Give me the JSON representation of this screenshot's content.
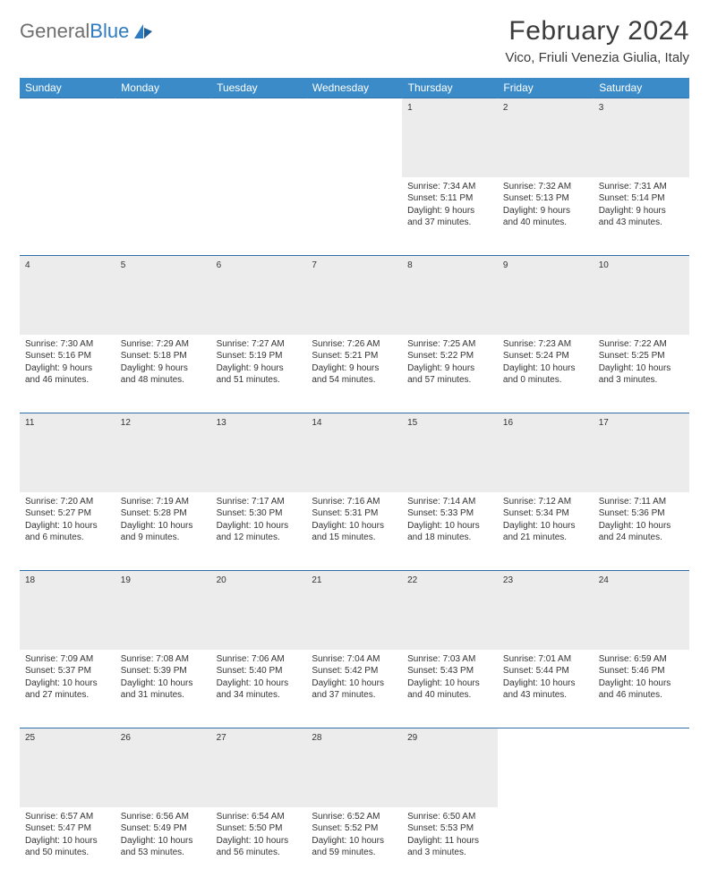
{
  "brand": {
    "name_a": "General",
    "name_b": "Blue"
  },
  "title": "February 2024",
  "location": "Vico, Friuli Venezia Giulia, Italy",
  "colors": {
    "header_bg": "#3b8bc8",
    "header_text": "#ffffff",
    "rule": "#2f6fa8",
    "daynum_bg": "#ececec",
    "body_text": "#333333",
    "brand_gray": "#6f6f6f",
    "brand_blue": "#2f7bbf"
  },
  "weekdays": [
    "Sunday",
    "Monday",
    "Tuesday",
    "Wednesday",
    "Thursday",
    "Friday",
    "Saturday"
  ],
  "weeks": [
    {
      "nums": [
        "",
        "",
        "",
        "",
        "1",
        "2",
        "3"
      ],
      "cells": [
        null,
        null,
        null,
        null,
        {
          "sunrise": "Sunrise: 7:34 AM",
          "sunset": "Sunset: 5:11 PM",
          "dl1": "Daylight: 9 hours",
          "dl2": "and 37 minutes."
        },
        {
          "sunrise": "Sunrise: 7:32 AM",
          "sunset": "Sunset: 5:13 PM",
          "dl1": "Daylight: 9 hours",
          "dl2": "and 40 minutes."
        },
        {
          "sunrise": "Sunrise: 7:31 AM",
          "sunset": "Sunset: 5:14 PM",
          "dl1": "Daylight: 9 hours",
          "dl2": "and 43 minutes."
        }
      ]
    },
    {
      "nums": [
        "4",
        "5",
        "6",
        "7",
        "8",
        "9",
        "10"
      ],
      "cells": [
        {
          "sunrise": "Sunrise: 7:30 AM",
          "sunset": "Sunset: 5:16 PM",
          "dl1": "Daylight: 9 hours",
          "dl2": "and 46 minutes."
        },
        {
          "sunrise": "Sunrise: 7:29 AM",
          "sunset": "Sunset: 5:18 PM",
          "dl1": "Daylight: 9 hours",
          "dl2": "and 48 minutes."
        },
        {
          "sunrise": "Sunrise: 7:27 AM",
          "sunset": "Sunset: 5:19 PM",
          "dl1": "Daylight: 9 hours",
          "dl2": "and 51 minutes."
        },
        {
          "sunrise": "Sunrise: 7:26 AM",
          "sunset": "Sunset: 5:21 PM",
          "dl1": "Daylight: 9 hours",
          "dl2": "and 54 minutes."
        },
        {
          "sunrise": "Sunrise: 7:25 AM",
          "sunset": "Sunset: 5:22 PM",
          "dl1": "Daylight: 9 hours",
          "dl2": "and 57 minutes."
        },
        {
          "sunrise": "Sunrise: 7:23 AM",
          "sunset": "Sunset: 5:24 PM",
          "dl1": "Daylight: 10 hours",
          "dl2": "and 0 minutes."
        },
        {
          "sunrise": "Sunrise: 7:22 AM",
          "sunset": "Sunset: 5:25 PM",
          "dl1": "Daylight: 10 hours",
          "dl2": "and 3 minutes."
        }
      ]
    },
    {
      "nums": [
        "11",
        "12",
        "13",
        "14",
        "15",
        "16",
        "17"
      ],
      "cells": [
        {
          "sunrise": "Sunrise: 7:20 AM",
          "sunset": "Sunset: 5:27 PM",
          "dl1": "Daylight: 10 hours",
          "dl2": "and 6 minutes."
        },
        {
          "sunrise": "Sunrise: 7:19 AM",
          "sunset": "Sunset: 5:28 PM",
          "dl1": "Daylight: 10 hours",
          "dl2": "and 9 minutes."
        },
        {
          "sunrise": "Sunrise: 7:17 AM",
          "sunset": "Sunset: 5:30 PM",
          "dl1": "Daylight: 10 hours",
          "dl2": "and 12 minutes."
        },
        {
          "sunrise": "Sunrise: 7:16 AM",
          "sunset": "Sunset: 5:31 PM",
          "dl1": "Daylight: 10 hours",
          "dl2": "and 15 minutes."
        },
        {
          "sunrise": "Sunrise: 7:14 AM",
          "sunset": "Sunset: 5:33 PM",
          "dl1": "Daylight: 10 hours",
          "dl2": "and 18 minutes."
        },
        {
          "sunrise": "Sunrise: 7:12 AM",
          "sunset": "Sunset: 5:34 PM",
          "dl1": "Daylight: 10 hours",
          "dl2": "and 21 minutes."
        },
        {
          "sunrise": "Sunrise: 7:11 AM",
          "sunset": "Sunset: 5:36 PM",
          "dl1": "Daylight: 10 hours",
          "dl2": "and 24 minutes."
        }
      ]
    },
    {
      "nums": [
        "18",
        "19",
        "20",
        "21",
        "22",
        "23",
        "24"
      ],
      "cells": [
        {
          "sunrise": "Sunrise: 7:09 AM",
          "sunset": "Sunset: 5:37 PM",
          "dl1": "Daylight: 10 hours",
          "dl2": "and 27 minutes."
        },
        {
          "sunrise": "Sunrise: 7:08 AM",
          "sunset": "Sunset: 5:39 PM",
          "dl1": "Daylight: 10 hours",
          "dl2": "and 31 minutes."
        },
        {
          "sunrise": "Sunrise: 7:06 AM",
          "sunset": "Sunset: 5:40 PM",
          "dl1": "Daylight: 10 hours",
          "dl2": "and 34 minutes."
        },
        {
          "sunrise": "Sunrise: 7:04 AM",
          "sunset": "Sunset: 5:42 PM",
          "dl1": "Daylight: 10 hours",
          "dl2": "and 37 minutes."
        },
        {
          "sunrise": "Sunrise: 7:03 AM",
          "sunset": "Sunset: 5:43 PM",
          "dl1": "Daylight: 10 hours",
          "dl2": "and 40 minutes."
        },
        {
          "sunrise": "Sunrise: 7:01 AM",
          "sunset": "Sunset: 5:44 PM",
          "dl1": "Daylight: 10 hours",
          "dl2": "and 43 minutes."
        },
        {
          "sunrise": "Sunrise: 6:59 AM",
          "sunset": "Sunset: 5:46 PM",
          "dl1": "Daylight: 10 hours",
          "dl2": "and 46 minutes."
        }
      ]
    },
    {
      "nums": [
        "25",
        "26",
        "27",
        "28",
        "29",
        "",
        ""
      ],
      "cells": [
        {
          "sunrise": "Sunrise: 6:57 AM",
          "sunset": "Sunset: 5:47 PM",
          "dl1": "Daylight: 10 hours",
          "dl2": "and 50 minutes."
        },
        {
          "sunrise": "Sunrise: 6:56 AM",
          "sunset": "Sunset: 5:49 PM",
          "dl1": "Daylight: 10 hours",
          "dl2": "and 53 minutes."
        },
        {
          "sunrise": "Sunrise: 6:54 AM",
          "sunset": "Sunset: 5:50 PM",
          "dl1": "Daylight: 10 hours",
          "dl2": "and 56 minutes."
        },
        {
          "sunrise": "Sunrise: 6:52 AM",
          "sunset": "Sunset: 5:52 PM",
          "dl1": "Daylight: 10 hours",
          "dl2": "and 59 minutes."
        },
        {
          "sunrise": "Sunrise: 6:50 AM",
          "sunset": "Sunset: 5:53 PM",
          "dl1": "Daylight: 11 hours",
          "dl2": "and 3 minutes."
        },
        null,
        null
      ]
    }
  ]
}
